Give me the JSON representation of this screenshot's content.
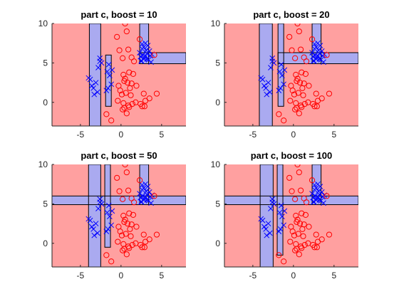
{
  "chart_data": [
    {
      "type": "scatter",
      "title": "part c, boost = 10",
      "xlim": [
        -8.5,
        8
      ],
      "ylim": [
        -3,
        10
      ],
      "xticks": [
        -5,
        0,
        5
      ],
      "yticks": [
        0,
        5,
        10
      ],
      "region_colors": {
        "class_pos": "#aaaaf0",
        "class_neg": "#ffa0a0"
      },
      "blue_regions": [
        {
          "x": [
            -3.9,
            -2.5
          ],
          "y": [
            -3,
            10
          ]
        },
        {
          "x": [
            -1.9,
            -1.2
          ],
          "y": [
            -0.5,
            6.0
          ]
        },
        {
          "x": [
            2.3,
            3.4
          ],
          "y": [
            4.9,
            10
          ]
        },
        {
          "x": [
            2.3,
            8
          ],
          "y": [
            4.9,
            6.3
          ]
        }
      ],
      "series": [
        {
          "name": "",
          "marker": "x",
          "color": "#0000ff",
          "x": [
            -3.4,
            -3.6,
            -3.1,
            -2.9,
            -3.8,
            -4.0,
            -3.3,
            -2.6,
            -2.4,
            -2.8,
            -1.7,
            -1.5,
            -1.2,
            -1.6,
            -1.8,
            -1.4,
            -1.1,
            -2.6,
            2.5,
            2.8,
            3.0,
            3.2,
            3.5,
            2.6,
            3.3,
            2.9,
            3.7,
            2.4,
            2.7,
            3.1,
            3.4,
            3.6,
            2.3,
            2.8,
            3.0,
            3.8,
            2.5,
            3.2,
            2.6
          ],
          "y": [
            1.8,
            2.1,
            2.5,
            1.3,
            2.9,
            3.1,
            1.0,
            5.6,
            5.0,
            4.4,
            3.9,
            4.8,
            2.3,
            1.8,
            1.5,
            3.4,
            4.1,
            5.2,
            5.3,
            5.5,
            5.9,
            6.2,
            6.5,
            6.8,
            7.2,
            5.6,
            5.1,
            5.8,
            6.0,
            6.6,
            5.4,
            5.9,
            6.3,
            7.0,
            7.5,
            6.1,
            5.2,
            5.5,
            7.4
          ]
        },
        {
          "name": "",
          "marker": "o",
          "color": "#ff0000",
          "x": [
            0.5,
            -0.5,
            0.7,
            0.2,
            0.9,
            1.3,
            1.6,
            -0.2,
            0.3,
            1.0,
            1.5,
            0.4,
            -0.3,
            0.8,
            1.9,
            1.1,
            0.6,
            0.1,
            1.2,
            -0.4,
            0.3,
            0.9,
            1.4,
            1.8,
            2.4,
            2.6,
            3.0,
            3.5,
            2.8,
            -1.8,
            -1.2,
            0.7,
            0.4,
            1.0,
            2.9,
            -0.1,
            0.5,
            1.3,
            4.4,
            2.3,
            4.1,
            0.2
          ],
          "y": [
            10.0,
            8.3,
            9.0,
            5.6,
            6.7,
            5.7,
            5.2,
            6.6,
            3.5,
            3.8,
            3.6,
            2.7,
            2.1,
            2.5,
            2.1,
            1.8,
            1.2,
            1.0,
            0.9,
            0.2,
            -0.1,
            -0.4,
            -0.2,
            0.0,
            -0.2,
            -0.5,
            0.2,
            0.5,
            1.1,
            -1.5,
            -2.3,
            -1.4,
            -0.7,
            -0.6,
            -0.5,
            1.5,
            3.0,
            2.4,
            1.1,
            8.0,
            6.0,
            -0.9
          ]
        }
      ]
    },
    {
      "type": "scatter",
      "title": "part c, boost = 20",
      "xlim": [
        -8.5,
        8
      ],
      "ylim": [
        -3,
        10
      ],
      "xticks": [
        -5,
        0,
        5
      ],
      "yticks": [
        0,
        5,
        10
      ],
      "region_colors": {
        "class_pos": "#aaaaf0",
        "class_neg": "#ffa0a0"
      },
      "blue_regions": [
        {
          "x": [
            -4.2,
            -2.6
          ],
          "y": [
            -3,
            10
          ]
        },
        {
          "x": [
            -1.9,
            -1.2
          ],
          "y": [
            -0.5,
            10
          ]
        },
        {
          "x": [
            2.3,
            3.4
          ],
          "y": [
            4.9,
            10
          ]
        },
        {
          "x": [
            -1.9,
            8
          ],
          "y": [
            4.9,
            6.3
          ]
        }
      ],
      "series": [
        {
          "name": "",
          "marker": "x",
          "color": "#0000ff",
          "x": [
            -3.4,
            -3.6,
            -3.1,
            -2.9,
            -3.8,
            -4.0,
            -3.3,
            -2.6,
            -2.4,
            -2.8,
            -1.7,
            -1.5,
            -1.2,
            -1.6,
            -1.8,
            -1.4,
            -1.1,
            -2.6,
            2.5,
            2.8,
            3.0,
            3.2,
            3.5,
            2.6,
            3.3,
            2.9,
            3.7,
            2.4,
            2.7,
            3.1,
            3.4,
            3.6,
            2.3,
            2.8,
            3.0,
            3.8,
            2.5,
            3.2,
            2.6
          ],
          "y": [
            1.8,
            2.1,
            2.5,
            1.3,
            2.9,
            3.1,
            1.0,
            5.6,
            5.0,
            4.4,
            3.9,
            4.8,
            2.3,
            1.8,
            1.5,
            3.4,
            4.1,
            5.2,
            5.3,
            5.5,
            5.9,
            6.2,
            6.5,
            6.8,
            7.2,
            5.6,
            5.1,
            5.8,
            6.0,
            6.6,
            5.4,
            5.9,
            6.3,
            7.0,
            7.5,
            6.1,
            5.2,
            5.5,
            7.4
          ]
        },
        {
          "name": "",
          "marker": "o",
          "color": "#ff0000",
          "x": [
            0.5,
            -0.5,
            0.7,
            0.2,
            0.9,
            1.3,
            1.6,
            -0.2,
            0.3,
            1.0,
            1.5,
            0.4,
            -0.3,
            0.8,
            1.9,
            1.1,
            0.6,
            0.1,
            1.2,
            -0.4,
            0.3,
            0.9,
            1.4,
            1.8,
            2.4,
            2.6,
            3.0,
            3.5,
            2.8,
            -1.8,
            -1.2,
            0.7,
            0.4,
            1.0,
            2.9,
            -0.1,
            0.5,
            1.3,
            4.4,
            2.3,
            4.1,
            0.2
          ],
          "y": [
            10.0,
            8.3,
            9.0,
            5.6,
            6.7,
            5.7,
            5.2,
            6.6,
            3.5,
            3.8,
            3.6,
            2.7,
            2.1,
            2.5,
            2.1,
            1.8,
            1.2,
            1.0,
            0.9,
            0.2,
            -0.1,
            -0.4,
            -0.2,
            0.0,
            -0.2,
            -0.5,
            0.2,
            0.5,
            1.1,
            -1.5,
            -2.3,
            -1.4,
            -0.7,
            -0.6,
            -0.5,
            1.5,
            3.0,
            2.4,
            1.1,
            8.0,
            6.0,
            -0.9
          ]
        }
      ]
    },
    {
      "type": "scatter",
      "title": "part c, boost = 50",
      "xlim": [
        -8.5,
        8
      ],
      "ylim": [
        -3,
        10
      ],
      "xticks": [
        -5,
        0,
        5
      ],
      "yticks": [
        0,
        5,
        10
      ],
      "region_colors": {
        "class_pos": "#aaaaf0",
        "class_neg": "#ffa0a0"
      },
      "blue_regions": [
        {
          "x": [
            -4.0,
            -2.5
          ],
          "y": [
            -3,
            10
          ]
        },
        {
          "x": [
            -2.0,
            -1.3
          ],
          "y": [
            -0.5,
            10
          ]
        },
        {
          "x": [
            2.3,
            3.4
          ],
          "y": [
            4.9,
            10
          ]
        },
        {
          "x": [
            -8.5,
            8
          ],
          "y": [
            4.9,
            6.0
          ]
        }
      ],
      "series": [
        {
          "name": "",
          "marker": "x",
          "color": "#0000ff",
          "x": [
            -3.4,
            -3.6,
            -3.1,
            -2.9,
            -3.8,
            -4.0,
            -3.3,
            -2.6,
            -2.4,
            -2.8,
            -1.7,
            -1.5,
            -1.2,
            -1.6,
            -1.8,
            -1.4,
            -1.1,
            -2.6,
            2.5,
            2.8,
            3.0,
            3.2,
            3.5,
            2.6,
            3.3,
            2.9,
            3.7,
            2.4,
            2.7,
            3.1,
            3.4,
            3.6,
            2.3,
            2.8,
            3.0,
            3.8,
            2.5,
            3.2,
            2.6
          ],
          "y": [
            1.8,
            2.1,
            2.5,
            1.3,
            2.9,
            3.1,
            1.0,
            5.6,
            5.0,
            4.4,
            3.9,
            4.8,
            2.3,
            1.8,
            1.5,
            3.4,
            4.1,
            5.2,
            5.3,
            5.5,
            5.9,
            6.2,
            6.5,
            6.8,
            7.2,
            5.6,
            5.1,
            5.8,
            6.0,
            6.6,
            5.4,
            5.9,
            6.3,
            7.0,
            7.5,
            6.1,
            5.2,
            5.5,
            7.4
          ]
        },
        {
          "name": "",
          "marker": "o",
          "color": "#ff0000",
          "x": [
            0.5,
            -0.5,
            0.7,
            0.2,
            0.9,
            1.3,
            1.6,
            -0.2,
            0.3,
            1.0,
            1.5,
            0.4,
            -0.3,
            0.8,
            1.9,
            1.1,
            0.6,
            0.1,
            1.2,
            -0.4,
            0.3,
            0.9,
            1.4,
            1.8,
            2.4,
            2.6,
            3.0,
            3.5,
            2.8,
            -1.8,
            -1.2,
            0.7,
            0.4,
            1.0,
            2.9,
            -0.1,
            0.5,
            1.3,
            4.4,
            2.3,
            4.1,
            0.2
          ],
          "y": [
            10.0,
            8.3,
            9.0,
            5.6,
            6.7,
            5.7,
            5.2,
            6.6,
            3.5,
            3.8,
            3.6,
            2.7,
            2.1,
            2.5,
            2.1,
            1.8,
            1.2,
            1.0,
            0.9,
            0.2,
            -0.1,
            -0.4,
            -0.2,
            0.0,
            -0.2,
            -0.5,
            0.2,
            0.5,
            1.1,
            -1.5,
            -2.3,
            -1.4,
            -0.7,
            -0.6,
            -0.5,
            1.5,
            3.0,
            2.4,
            1.1,
            8.0,
            6.0,
            -0.9
          ]
        }
      ]
    },
    {
      "type": "scatter",
      "title": "part c, boost = 100",
      "xlim": [
        -8.5,
        8
      ],
      "ylim": [
        -3,
        10
      ],
      "xticks": [
        -5,
        0,
        5
      ],
      "yticks": [
        0,
        5,
        10
      ],
      "region_colors": {
        "class_pos": "#aaaaf0",
        "class_neg": "#ffa0a0"
      },
      "blue_regions": [
        {
          "x": [
            -4.1,
            -2.5
          ],
          "y": [
            -3,
            10
          ]
        },
        {
          "x": [
            -2.0,
            -1.3
          ],
          "y": [
            -1.5,
            10
          ]
        },
        {
          "x": [
            2.3,
            3.4
          ],
          "y": [
            4.9,
            10
          ]
        },
        {
          "x": [
            -8.5,
            8
          ],
          "y": [
            4.9,
            6.0
          ]
        }
      ],
      "series": [
        {
          "name": "",
          "marker": "x",
          "color": "#0000ff",
          "x": [
            -3.4,
            -3.6,
            -3.1,
            -2.9,
            -3.8,
            -4.0,
            -3.3,
            -2.6,
            -2.4,
            -2.8,
            -1.7,
            -1.5,
            -1.2,
            -1.6,
            -1.8,
            -1.4,
            -1.1,
            -2.6,
            2.5,
            2.8,
            3.0,
            3.2,
            3.5,
            2.6,
            3.3,
            2.9,
            3.7,
            2.4,
            2.7,
            3.1,
            3.4,
            3.6,
            2.3,
            2.8,
            3.0,
            3.8,
            2.5,
            3.2,
            2.6
          ],
          "y": [
            1.8,
            2.1,
            2.5,
            1.3,
            2.9,
            3.1,
            1.0,
            5.6,
            5.0,
            4.4,
            3.9,
            4.8,
            2.3,
            1.8,
            1.5,
            3.4,
            4.1,
            5.2,
            5.3,
            5.5,
            5.9,
            6.2,
            6.5,
            6.8,
            7.2,
            5.6,
            5.1,
            5.8,
            6.0,
            6.6,
            5.4,
            5.9,
            6.3,
            7.0,
            7.5,
            6.1,
            5.2,
            5.5,
            7.4
          ]
        },
        {
          "name": "",
          "marker": "o",
          "color": "#ff0000",
          "x": [
            0.5,
            -0.5,
            0.7,
            0.2,
            0.9,
            1.3,
            1.6,
            -0.2,
            0.3,
            1.0,
            1.5,
            0.4,
            -0.3,
            0.8,
            1.9,
            1.1,
            0.6,
            0.1,
            1.2,
            -0.4,
            0.3,
            0.9,
            1.4,
            1.8,
            2.4,
            2.6,
            3.0,
            3.5,
            2.8,
            -1.8,
            -1.2,
            0.7,
            0.4,
            1.0,
            2.9,
            -0.1,
            0.5,
            1.3,
            4.4,
            2.3,
            4.1,
            0.2
          ],
          "y": [
            10.0,
            8.3,
            9.0,
            5.6,
            6.7,
            5.7,
            5.2,
            6.6,
            3.5,
            3.8,
            3.6,
            2.7,
            2.1,
            2.5,
            2.1,
            1.8,
            1.2,
            1.0,
            0.9,
            0.2,
            -0.1,
            -0.4,
            -0.2,
            0.0,
            -0.2,
            -0.5,
            0.2,
            0.5,
            1.1,
            -1.5,
            -2.3,
            -1.4,
            -0.7,
            -0.6,
            -0.5,
            1.5,
            3.0,
            2.4,
            1.1,
            8.0,
            6.0,
            -0.9
          ]
        }
      ]
    }
  ]
}
